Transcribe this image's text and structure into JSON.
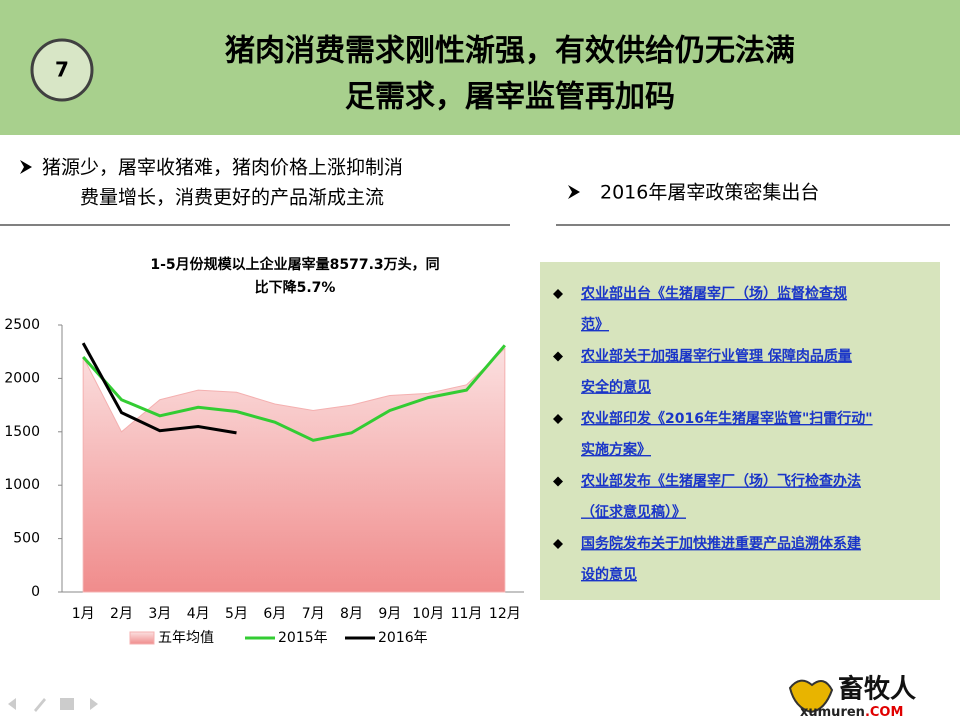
{
  "header": {
    "number": "7",
    "title_lines": [
      "猪肉消费需求刚性渐强，有效供给仍无法满",
      "足需求，屠宰监管再加码"
    ]
  },
  "left_bullet": [
    "猪源少，屠宰收猪难，猪肉价格上涨抑制消",
    "费量增长，消费更好的产品渐成主流"
  ],
  "right_bullet": "2016年屠宰政策密集出台",
  "chart_data": {
    "type": "line",
    "title_lines": [
      "1-5月份规模以上企业屠宰量8577.3万头，同",
      "比下降5.7%"
    ],
    "categories": [
      "1月",
      "2月",
      "3月",
      "4月",
      "5月",
      "6月",
      "7月",
      "8月",
      "9月",
      "10月",
      "11月",
      "12月"
    ],
    "series": [
      {
        "name": "五年均值",
        "style": "area",
        "color": "#f4b0b0",
        "values": [
          2200,
          1500,
          1800,
          1890,
          1870,
          1760,
          1700,
          1750,
          1840,
          1860,
          1940,
          2280
        ]
      },
      {
        "name": "2015年",
        "style": "line",
        "color": "#33cc33",
        "values": [
          2200,
          1800,
          1650,
          1730,
          1690,
          1590,
          1420,
          1490,
          1700,
          1820,
          1890,
          2310
        ]
      },
      {
        "name": "2016年",
        "style": "line",
        "color": "#000000",
        "values": [
          2330,
          1680,
          1510,
          1550,
          1490,
          null,
          null,
          null,
          null,
          null,
          null,
          null
        ]
      }
    ],
    "ylim": [
      0,
      2500
    ],
    "yticks": [
      0,
      500,
      1000,
      1500,
      2000,
      2500
    ],
    "grid": false,
    "legend": "bottom"
  },
  "policies": [
    [
      "农业部出台《生猪屠宰厂（场）监督检查规",
      "范》"
    ],
    [
      "农业部关于加强屠宰行业管理 保障肉品质量",
      "安全的意见"
    ],
    [
      "农业部印发《2016年生猪屠宰监管\"扫雷行动\"",
      "实施方案》"
    ],
    [
      "农业部发布《生猪屠宰厂（场）飞行检查办法",
      "（征求意见稿）》"
    ],
    [
      "国务院发布关于加快推进重要产品追溯体系建",
      "设的意见"
    ]
  ],
  "logo": {
    "name": "畜牧人",
    "site": "xumuren",
    "domain": ".COM"
  }
}
